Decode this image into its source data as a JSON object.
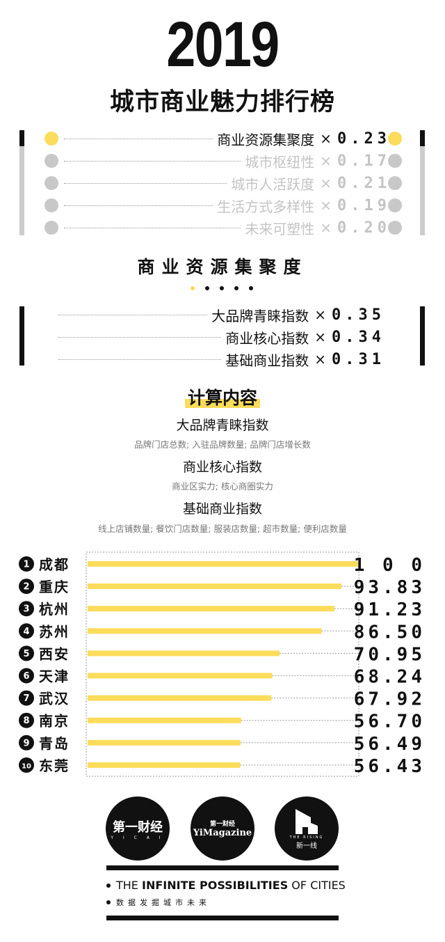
{
  "header": {
    "year": "2019",
    "title": "城市商业魅力排行榜"
  },
  "weights": [
    {
      "label": "商业资源集聚度",
      "times": "×",
      "value": "0.23",
      "active": true
    },
    {
      "label": "城市枢纽性",
      "times": "×",
      "value": "0.17",
      "active": false
    },
    {
      "label": "城市人活跃度",
      "times": "×",
      "value": "0.21",
      "active": false
    },
    {
      "label": "生活方式多样性",
      "times": "×",
      "value": "0.19",
      "active": false
    },
    {
      "label": "未来可塑性",
      "times": "×",
      "value": "0.20",
      "active": false
    }
  ],
  "section": {
    "title": "商业资源集聚度",
    "page_active": 1,
    "page_count": 5
  },
  "sub_weights": [
    {
      "label": "大品牌青睐指数",
      "times": "×",
      "value": "0.35"
    },
    {
      "label": "商业核心指数",
      "times": "×",
      "value": "0.34"
    },
    {
      "label": "基础商业指数",
      "times": "×",
      "value": "0.31"
    }
  ],
  "calc": {
    "title": "计算内容",
    "items": [
      {
        "name": "大品牌青睐指数",
        "desc": "品牌门店总数; 入驻品牌数量; 品牌门店增长数"
      },
      {
        "name": "商业核心指数",
        "desc": "商业区实力; 核心商圈实力"
      },
      {
        "name": "基础商业指数",
        "desc": "线上店铺数量; 餐饮门店数量; 服装店数量; 超市数量; 便利店数量"
      }
    ]
  },
  "colors": {
    "accent": "#fbdc5b",
    "inactive": "#c8c8c8",
    "text": "#111111"
  },
  "chart_data": {
    "type": "bar",
    "orientation": "horizontal",
    "xlim": [
      0,
      100
    ],
    "categories": [
      "成都",
      "重庆",
      "杭州",
      "苏州",
      "西安",
      "天津",
      "武汉",
      "南京",
      "青岛",
      "东莞"
    ],
    "ranks": [
      "1",
      "2",
      "3",
      "4",
      "5",
      "6",
      "7",
      "8",
      "9",
      "10"
    ],
    "values": [
      100,
      93.83,
      91.23,
      86.5,
      70.95,
      68.24,
      67.92,
      56.7,
      56.49,
      56.43
    ],
    "value_labels": [
      "1 0 0",
      "93.83",
      "91.23",
      "86.50",
      "70.95",
      "68.24",
      "67.92",
      "56.70",
      "56.49",
      "56.43"
    ]
  },
  "footer": {
    "logos": [
      {
        "text": "第一财经",
        "sub": "Y I C A I"
      },
      {
        "text": "第一财经",
        "sub": "YiMagazine"
      },
      {
        "text": "新一线",
        "sub": "THE RISING"
      }
    ],
    "tagline_pre": "THE ",
    "tagline_bold": "INFINITE POSSIBILITIES",
    "tagline_post": " OF CITIES",
    "tagline_cn": "数据发掘城市未来"
  }
}
